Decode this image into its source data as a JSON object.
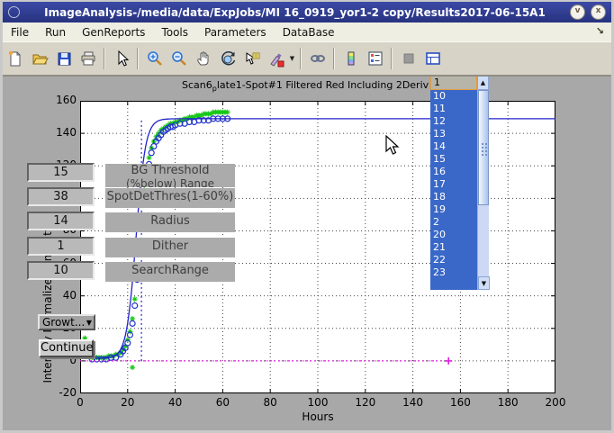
{
  "window": {
    "title": "ImageAnalysis-/media/data/ExpJobs/MI 16_0919_yor1-2 copy/Results2017-06-15A1",
    "shade_glyph": "v",
    "close_glyph": "x",
    "dock_glyph": "↘"
  },
  "menu": {
    "items": [
      "File",
      "Run",
      "GenReports",
      "Tools",
      "Parameters",
      "DataBase"
    ]
  },
  "toolbar": {
    "items": [
      {
        "type": "button",
        "name": "new-figure-icon"
      },
      {
        "type": "button",
        "name": "open-file-icon"
      },
      {
        "type": "button",
        "name": "save-figure-icon"
      },
      {
        "type": "button",
        "name": "print-figure-icon"
      },
      {
        "type": "separator"
      },
      {
        "type": "button",
        "name": "pointer-icon"
      },
      {
        "type": "separator"
      },
      {
        "type": "button",
        "name": "zoom-in-icon"
      },
      {
        "type": "button",
        "name": "zoom-out-icon"
      },
      {
        "type": "button",
        "name": "pan-icon"
      },
      {
        "type": "button",
        "name": "rotate-3d-icon"
      },
      {
        "type": "button",
        "name": "data-cursor-icon"
      },
      {
        "type": "button",
        "name": "brush-icon"
      },
      {
        "type": "caret",
        "name": "brush-caret-icon"
      },
      {
        "type": "separator"
      },
      {
        "type": "button",
        "name": "link-plot-icon"
      },
      {
        "type": "separator"
      },
      {
        "type": "button",
        "name": "colorbar-icon"
      },
      {
        "type": "button",
        "name": "legend-icon"
      },
      {
        "type": "separator"
      },
      {
        "type": "button",
        "name": "hide-plot-tools-icon"
      },
      {
        "type": "button",
        "name": "show-plot-tools-icon"
      }
    ]
  },
  "figure": {
    "title_prefix": "Scan6",
    "title_sub": "p",
    "title_rest": "late1-Spot#1 Filtered Red Including 2Deriv Blue",
    "xlabel": "Hours",
    "ylabel": "Intensity Normalized and Fitted",
    "params": [
      {
        "value": "15",
        "label": "BG Threshold",
        "sublabel": "(%below) Range"
      },
      {
        "value": "38",
        "label": "SpotDetThres(1-60%)",
        "sublabel": ""
      },
      {
        "value": "14",
        "label": "Radius",
        "sublabel": ""
      },
      {
        "value": "1",
        "label": "Dither",
        "sublabel": ""
      },
      {
        "value": "10",
        "label": "SearchRange",
        "sublabel": ""
      }
    ],
    "growth_button_label": "Growt...",
    "continue_button_label": "Continue",
    "dropdown": {
      "value": "1",
      "items": [
        "10",
        "11",
        "12",
        "13",
        "14",
        "15",
        "16",
        "17",
        "18",
        "19",
        "2",
        "20",
        "21",
        "22",
        "23"
      ]
    }
  },
  "chart_data": {
    "type": "line+scatter",
    "title": "Scan6_plate1-Spot#1 Filtered Red Including 2Deriv Blue",
    "xlabel": "Hours",
    "ylabel": "Intensity Normalized and Fitted",
    "xlim": [
      0,
      200
    ],
    "ylim": [
      -20,
      160
    ],
    "xticks": [
      0,
      20,
      40,
      60,
      80,
      100,
      120,
      140,
      160,
      180,
      200
    ],
    "yticks": [
      -20,
      0,
      20,
      40,
      60,
      80,
      100,
      120,
      140,
      160
    ],
    "grid": true,
    "colors": {
      "fit_line": "#2222cc",
      "markers": "#17c817",
      "circles": "#2233cc",
      "baseline": "#e020e0"
    },
    "series": [
      {
        "name": "measured-intensity",
        "marker": "asterisk",
        "color": "#17c817",
        "points": [
          [
            2,
            14
          ],
          [
            5,
            2
          ],
          [
            6,
            2
          ],
          [
            7,
            2
          ],
          [
            8,
            2
          ],
          [
            9,
            2
          ],
          [
            10,
            2
          ],
          [
            11,
            2
          ],
          [
            12,
            3
          ],
          [
            13,
            3
          ],
          [
            14,
            3
          ],
          [
            15,
            4
          ],
          [
            16,
            4
          ],
          [
            17,
            5
          ],
          [
            18,
            7
          ],
          [
            19,
            9
          ],
          [
            20,
            13
          ],
          [
            21,
            18
          ],
          [
            22,
            -4
          ],
          [
            22,
            26
          ],
          [
            23,
            38
          ],
          [
            24,
            55
          ],
          [
            25,
            73
          ],
          [
            26,
            90
          ],
          [
            27,
            105
          ],
          [
            28,
            117
          ],
          [
            29,
            125
          ],
          [
            30,
            131
          ],
          [
            31,
            135
          ],
          [
            32,
            138
          ],
          [
            33,
            140
          ],
          [
            34,
            142
          ],
          [
            35,
            143
          ],
          [
            36,
            144
          ],
          [
            37,
            145
          ],
          [
            38,
            146
          ],
          [
            39,
            146
          ],
          [
            40,
            147
          ],
          [
            41,
            147
          ],
          [
            42,
            148
          ],
          [
            43,
            148
          ],
          [
            44,
            149
          ],
          [
            45,
            149
          ],
          [
            46,
            150
          ],
          [
            47,
            150
          ],
          [
            48,
            150
          ],
          [
            49,
            151
          ],
          [
            50,
            151
          ],
          [
            51,
            151
          ],
          [
            52,
            152
          ],
          [
            53,
            152
          ],
          [
            54,
            152
          ],
          [
            55,
            152
          ],
          [
            56,
            153
          ],
          [
            57,
            153
          ],
          [
            58,
            153
          ],
          [
            59,
            153
          ],
          [
            60,
            153
          ],
          [
            61,
            153
          ],
          [
            62,
            153
          ]
        ]
      },
      {
        "name": "detected-spots",
        "marker": "circle",
        "color": "#2233cc",
        "points": [
          [
            5,
            1
          ],
          [
            7,
            1
          ],
          [
            9,
            1
          ],
          [
            11,
            1
          ],
          [
            13,
            2
          ],
          [
            15,
            2
          ],
          [
            17,
            4
          ],
          [
            18,
            6
          ],
          [
            19,
            8
          ],
          [
            20,
            11
          ],
          [
            21,
            16
          ],
          [
            22,
            23
          ],
          [
            23,
            34
          ],
          [
            24,
            50
          ],
          [
            25,
            68
          ],
          [
            26,
            85
          ],
          [
            27,
            100
          ],
          [
            28,
            112
          ],
          [
            29,
            121
          ],
          [
            30,
            128
          ],
          [
            31,
            132
          ],
          [
            32,
            135
          ],
          [
            33,
            137
          ],
          [
            34,
            139
          ],
          [
            35,
            141
          ],
          [
            36,
            142
          ],
          [
            37,
            143
          ],
          [
            38,
            144
          ],
          [
            39,
            144
          ],
          [
            40,
            145
          ],
          [
            42,
            146
          ],
          [
            44,
            146
          ],
          [
            46,
            147
          ],
          [
            48,
            147
          ],
          [
            50,
            148
          ],
          [
            52,
            148
          ],
          [
            54,
            148
          ],
          [
            56,
            149
          ],
          [
            58,
            149
          ],
          [
            60,
            149
          ],
          [
            62,
            149
          ]
        ]
      },
      {
        "name": "growth-fit-line",
        "type": "logistic",
        "color": "#2222cc",
        "base": 1.5,
        "max": 149,
        "midpoint": 23.5,
        "rate": 2.0,
        "x_end": 200
      },
      {
        "name": "baseline-line",
        "type": "hline",
        "color": "#e020e0",
        "style": "dotted",
        "y": 0,
        "x_range": [
          0,
          155
        ],
        "end_marker": "plus"
      },
      {
        "name": "detection-vline",
        "type": "vline",
        "color": "#2222cc",
        "style": "dotted",
        "x": 25.8,
        "y_range": [
          0,
          148
        ]
      }
    ]
  }
}
